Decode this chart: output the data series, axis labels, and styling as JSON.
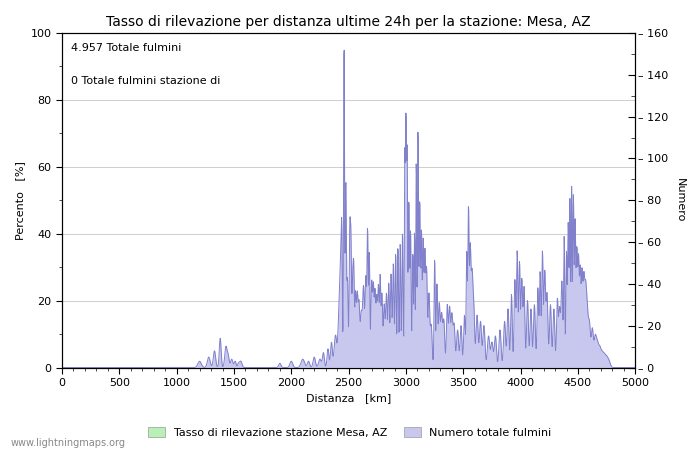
{
  "title": "Tasso di rilevazione per distanza ultime 24h per la stazione: Mesa, AZ",
  "xlabel": "Distanza   [km]",
  "ylabel_left": "Percento   [%]",
  "ylabel_right": "Numero",
  "annotation_line1": "4.957 Totale fulmini",
  "annotation_line2": "0 Totale fulmini stazione di",
  "legend_label1": "Tasso di rilevazione stazione Mesa, AZ",
  "legend_label2": "Numero totale fulmini",
  "watermark": "www.lightningmaps.org",
  "xlim": [
    0,
    5000
  ],
  "ylim_left": [
    0,
    100
  ],
  "ylim_right": [
    0,
    160
  ],
  "yticks_left_major": [
    0,
    20,
    40,
    60,
    80,
    100
  ],
  "yticks_right_major": [
    0,
    20,
    40,
    60,
    80,
    100,
    120,
    140,
    160
  ],
  "xticks": [
    0,
    500,
    1000,
    1500,
    2000,
    2500,
    3000,
    3500,
    4000,
    4500,
    5000
  ],
  "fill_color_rate": "#b8f0b8",
  "fill_color_count": "#c8c8ee",
  "line_color": "#8080cc",
  "bg_color": "#ffffff",
  "grid_color": "#aaaaaa",
  "title_fontsize": 10,
  "label_fontsize": 8,
  "tick_fontsize": 8,
  "annotation_fontsize": 8
}
